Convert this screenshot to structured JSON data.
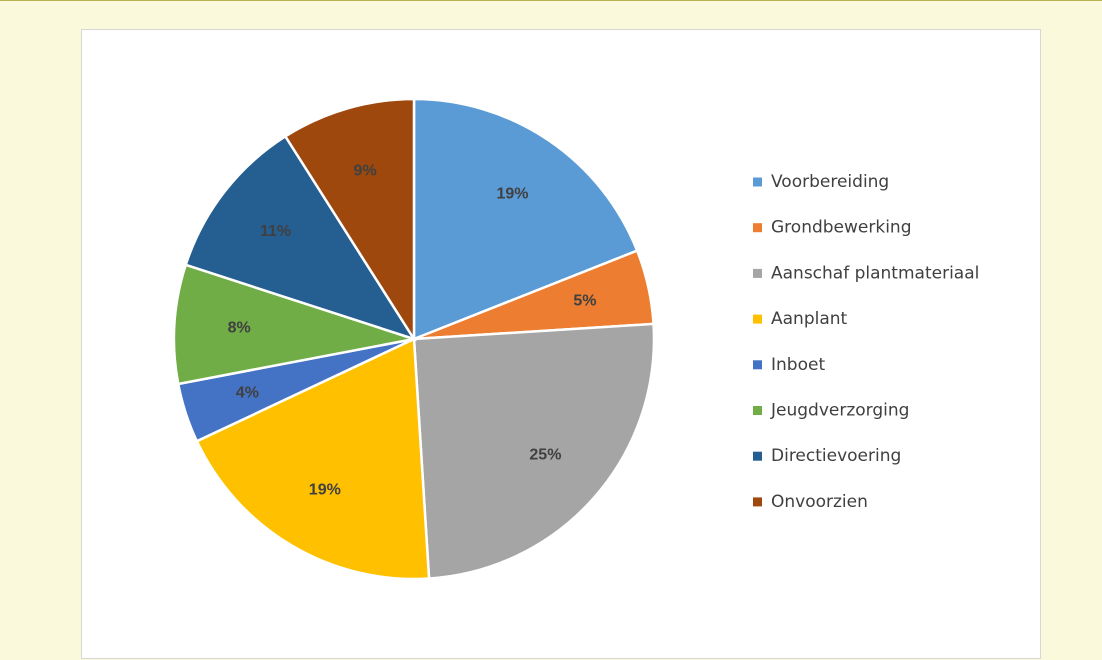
{
  "chart_data": {
    "type": "pie",
    "categories": [
      "Voorbereiding",
      "Grondbewerking",
      "Aanschaf plantmateriaal",
      "Aanplant",
      "Inboet",
      "Jeugdverzorging",
      "Directievoering",
      "Onvoorzien"
    ],
    "values": [
      19,
      5,
      25,
      19,
      4,
      8,
      11,
      9
    ],
    "labels": [
      "19%",
      "5%",
      "25%",
      "19%",
      "4%",
      "8%",
      "11%",
      "9%"
    ],
    "colors": [
      "#5b9bd5",
      "#ed7d31",
      "#a5a5a5",
      "#ffc000",
      "#4472c4",
      "#70ad47",
      "#255e91",
      "#9e480e"
    ],
    "title": "",
    "legend_position": "right",
    "start_angle_deg": 0,
    "direction": "clockwise"
  }
}
